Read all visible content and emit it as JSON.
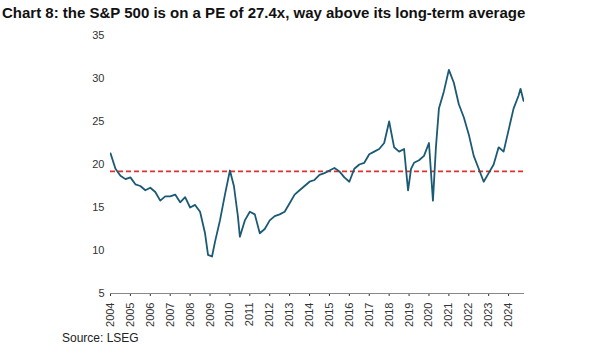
{
  "chart_data": {
    "type": "line",
    "title": "Chart 8: the S&P 500 is on a PE of 27.4x, way above its long-term average",
    "caption": "Source: LSEG",
    "x": [
      2004.0,
      2004.25,
      2004.5,
      2004.75,
      2005.0,
      2005.25,
      2005.5,
      2005.75,
      2006.0,
      2006.25,
      2006.5,
      2006.75,
      2007.0,
      2007.25,
      2007.5,
      2007.75,
      2008.0,
      2008.25,
      2008.5,
      2008.75,
      2008.9,
      2009.1,
      2009.25,
      2009.5,
      2009.75,
      2010.0,
      2010.2,
      2010.4,
      2010.5,
      2010.75,
      2011.0,
      2011.25,
      2011.5,
      2011.75,
      2012.0,
      2012.25,
      2012.5,
      2012.75,
      2013.0,
      2013.25,
      2013.5,
      2013.75,
      2014.0,
      2014.25,
      2014.5,
      2014.75,
      2015.0,
      2015.25,
      2015.5,
      2015.75,
      2016.0,
      2016.25,
      2016.5,
      2016.75,
      2017.0,
      2017.25,
      2017.5,
      2017.75,
      2018.0,
      2018.25,
      2018.5,
      2018.75,
      2018.95,
      2019.1,
      2019.25,
      2019.5,
      2019.75,
      2020.0,
      2020.2,
      2020.35,
      2020.5,
      2020.75,
      2021.0,
      2021.25,
      2021.5,
      2021.75,
      2022.0,
      2022.25,
      2022.5,
      2022.75,
      2023.0,
      2023.25,
      2023.5,
      2023.75,
      2024.0,
      2024.25,
      2024.5,
      2024.6,
      2024.75
    ],
    "series": [
      {
        "color": "#1b5a74",
        "values": [
          21.3,
          19.5,
          18.7,
          18.3,
          18.5,
          17.7,
          17.5,
          17.0,
          17.3,
          16.8,
          15.8,
          16.3,
          16.3,
          16.5,
          15.6,
          16.2,
          15.0,
          15.3,
          14.5,
          12.0,
          9.5,
          9.3,
          11.0,
          13.5,
          16.5,
          19.3,
          17.5,
          14.0,
          11.6,
          13.5,
          14.5,
          14.2,
          12.0,
          12.5,
          13.5,
          14.0,
          14.2,
          14.5,
          15.5,
          16.5,
          17.0,
          17.5,
          18.0,
          18.2,
          18.8,
          19.0,
          19.3,
          19.6,
          19.2,
          18.5,
          18.0,
          19.5,
          20.0,
          20.2,
          21.2,
          21.5,
          21.8,
          22.5,
          25.0,
          22.0,
          21.5,
          21.8,
          17.0,
          19.5,
          20.2,
          20.5,
          21.0,
          22.5,
          15.8,
          22.0,
          26.5,
          28.5,
          31.0,
          29.5,
          27.0,
          25.5,
          23.5,
          21.0,
          19.5,
          18.0,
          19.0,
          20.0,
          22.0,
          21.5,
          24.0,
          26.5,
          28.0,
          28.8,
          27.4
        ]
      }
    ],
    "average": {
      "value": 19.2,
      "color": "#e0312d",
      "line_style": "dashed"
    },
    "xlim": [
      2004,
      2024.8
    ],
    "xticks": [
      2004,
      2005,
      2006,
      2007,
      2008,
      2009,
      2010,
      2011,
      2012,
      2013,
      2014,
      2015,
      2016,
      2017,
      2018,
      2019,
      2020,
      2021,
      2022,
      2023,
      2024
    ],
    "ylim": [
      5,
      35
    ],
    "yticks": [
      5,
      10,
      15,
      20,
      25,
      30,
      35
    ],
    "grid": false
  }
}
